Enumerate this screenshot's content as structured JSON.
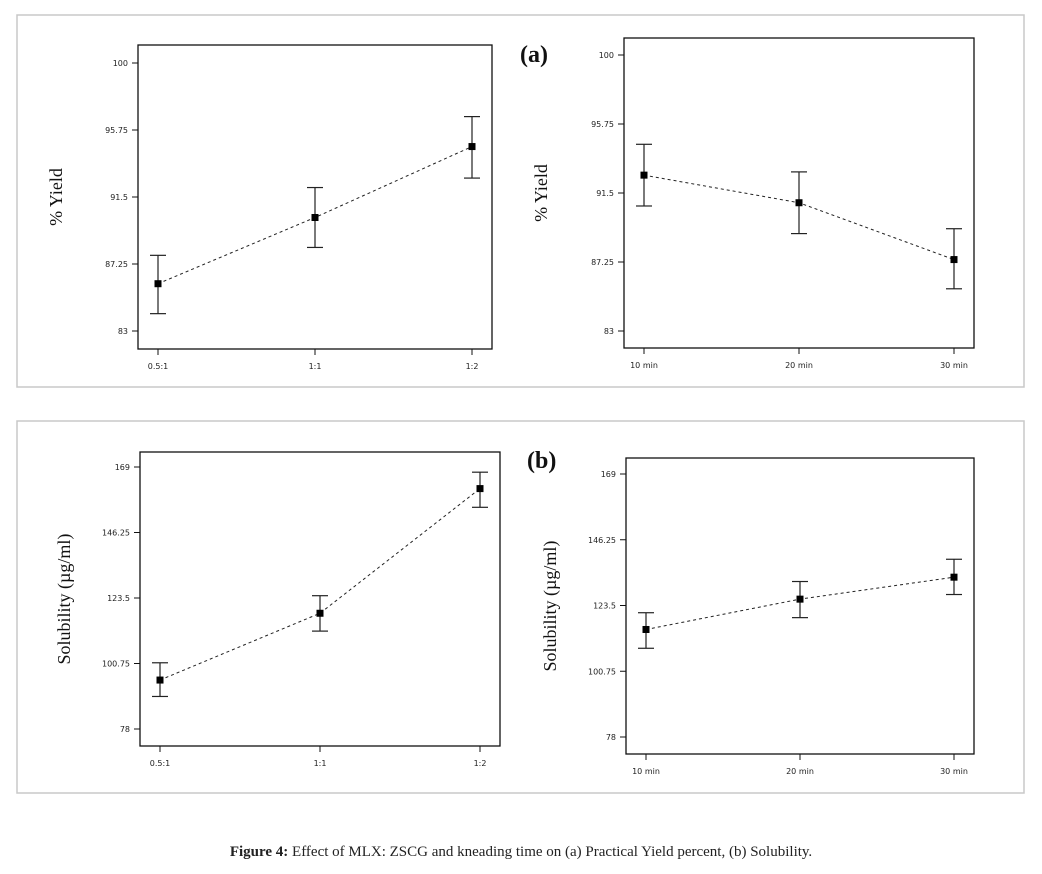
{
  "panel_labels": [
    "(a)",
    "(b)"
  ],
  "caption": {
    "prefix": "Figure 4:",
    "text": " Effect of MLX: ZSCG and kneading time on (a) Practical Yield percent, (b) Solubility."
  },
  "chart_data": [
    {
      "type": "line",
      "ylabel": "% Yield",
      "categories": [
        "0.5:1",
        "1:1",
        "1:2"
      ],
      "values": [
        86.0,
        90.2,
        94.7
      ],
      "error_low": [
        84.1,
        88.3,
        92.7
      ],
      "error_high": [
        87.8,
        92.1,
        96.6
      ],
      "yticks": [
        "83",
        "87.25",
        "91.5",
        "95.75",
        "100"
      ],
      "ylim": [
        83,
        100
      ],
      "line_style": "dashed",
      "marker": "square",
      "grid": false
    },
    {
      "type": "line",
      "ylabel": "% Yield",
      "categories": [
        "10 min",
        "20 min",
        "30 min"
      ],
      "values": [
        92.6,
        90.9,
        87.4
      ],
      "error_low": [
        90.7,
        89.0,
        85.6
      ],
      "error_high": [
        94.5,
        92.8,
        89.3
      ],
      "yticks": [
        "83",
        "87.25",
        "91.5",
        "95.75",
        "100"
      ],
      "ylim": [
        83,
        100
      ],
      "line_style": "dashed",
      "marker": "square",
      "grid": false
    },
    {
      "type": "line",
      "ylabel": "Solubility (µg/ml)",
      "categories": [
        "0.5:1",
        "1:1",
        "1:2"
      ],
      "values": [
        95.0,
        118.2,
        161.5
      ],
      "error_low": [
        89.3,
        112.0,
        155.0
      ],
      "error_high": [
        101.0,
        124.3,
        167.2
      ],
      "yticks": [
        "78",
        "100.75",
        "123.5",
        "146.25",
        "169"
      ],
      "ylim": [
        78,
        169
      ],
      "line_style": "dashed",
      "marker": "square",
      "grid": false
    },
    {
      "type": "line",
      "ylabel": "Solubility (µg/ml)",
      "categories": [
        "10 min",
        "20 min",
        "30 min"
      ],
      "values": [
        115.2,
        125.7,
        133.3
      ],
      "error_low": [
        108.7,
        119.3,
        127.3
      ],
      "error_high": [
        121.0,
        131.8,
        139.5
      ],
      "yticks": [
        "78",
        "100.75",
        "123.5",
        "146.25",
        "169"
      ],
      "ylim": [
        78,
        169
      ],
      "line_style": "dashed",
      "marker": "square",
      "grid": false
    }
  ]
}
